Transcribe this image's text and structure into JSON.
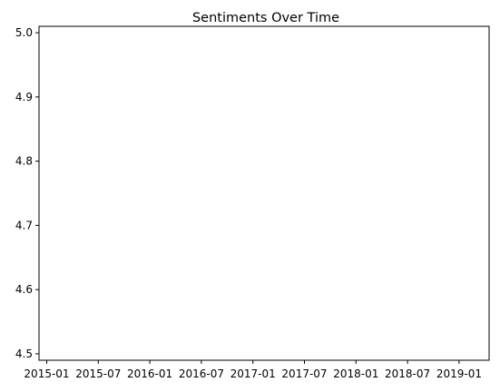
{
  "chart_data": {
    "type": "line",
    "title": "Sentiments Over Time",
    "xlabel": "",
    "ylabel": "",
    "x_ticks": [
      "2015-01",
      "2015-07",
      "2016-01",
      "2016-07",
      "2017-01",
      "2017-07",
      "2018-01",
      "2018-07",
      "2019-01"
    ],
    "y_ticks": [
      "4.5",
      "4.6",
      "4.7",
      "4.8",
      "4.9",
      "5.0"
    ],
    "ylim": [
      4.49,
      5.01
    ],
    "grid": false,
    "series": []
  }
}
